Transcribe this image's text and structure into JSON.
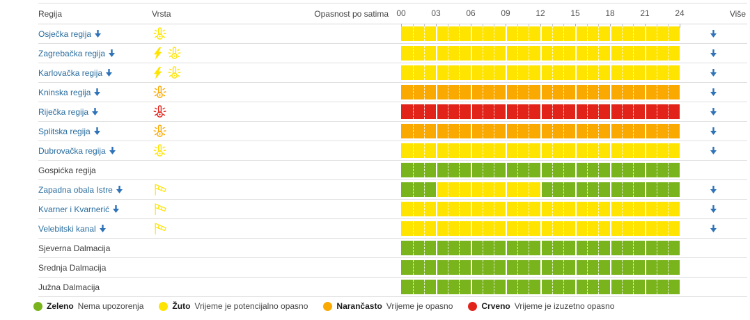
{
  "table": {
    "header": {
      "region": "Regija",
      "type": "Vrsta",
      "hours": "Opasnost po satima",
      "more": "Više",
      "hour_labels": [
        "00",
        "03",
        "06",
        "09",
        "12",
        "15",
        "18",
        "21",
        "24"
      ]
    },
    "rows": [
      {
        "name": "Osječka regija",
        "link": true,
        "more": true,
        "icons": [
          {
            "icon": "heat",
            "color": "yellow"
          }
        ],
        "segments": [
          {
            "from": 0,
            "to": 24,
            "level": "yellow"
          }
        ]
      },
      {
        "name": "Zagrebačka regija",
        "link": true,
        "more": true,
        "icons": [
          {
            "icon": "thunderstorm",
            "color": "yellow"
          },
          {
            "icon": "heat",
            "color": "yellow"
          }
        ],
        "segments": [
          {
            "from": 0,
            "to": 24,
            "level": "yellow"
          }
        ]
      },
      {
        "name": "Karlovačka regija",
        "link": true,
        "more": true,
        "icons": [
          {
            "icon": "thunderstorm",
            "color": "yellow"
          },
          {
            "icon": "heat",
            "color": "yellow"
          }
        ],
        "segments": [
          {
            "from": 0,
            "to": 24,
            "level": "yellow"
          }
        ]
      },
      {
        "name": "Kninska regija",
        "link": true,
        "more": true,
        "icons": [
          {
            "icon": "heat",
            "color": "orange"
          }
        ],
        "segments": [
          {
            "from": 0,
            "to": 24,
            "level": "orange"
          }
        ]
      },
      {
        "name": "Riječka regija",
        "link": true,
        "more": true,
        "icons": [
          {
            "icon": "heat",
            "color": "red"
          }
        ],
        "segments": [
          {
            "from": 0,
            "to": 24,
            "level": "red"
          }
        ]
      },
      {
        "name": "Splitska regija",
        "link": true,
        "more": true,
        "icons": [
          {
            "icon": "heat",
            "color": "orange"
          }
        ],
        "segments": [
          {
            "from": 0,
            "to": 24,
            "level": "orange"
          }
        ]
      },
      {
        "name": "Dubrovačka regija",
        "link": true,
        "more": true,
        "icons": [
          {
            "icon": "heat",
            "color": "yellow"
          }
        ],
        "segments": [
          {
            "from": 0,
            "to": 24,
            "level": "yellow"
          }
        ]
      },
      {
        "name": "Gospićka regija",
        "link": false,
        "more": false,
        "icons": [],
        "segments": [
          {
            "from": 0,
            "to": 24,
            "level": "green"
          }
        ]
      },
      {
        "name": "Zapadna obala Istre",
        "link": true,
        "more": true,
        "icons": [
          {
            "icon": "wind",
            "color": "yellow"
          }
        ],
        "segments": [
          {
            "from": 0,
            "to": 3,
            "level": "green"
          },
          {
            "from": 3,
            "to": 12,
            "level": "yellow"
          },
          {
            "from": 12,
            "to": 24,
            "level": "green"
          }
        ]
      },
      {
        "name": "Kvarner i Kvarnerić",
        "link": true,
        "more": true,
        "icons": [
          {
            "icon": "wind",
            "color": "yellow"
          }
        ],
        "segments": [
          {
            "from": 0,
            "to": 24,
            "level": "yellow"
          }
        ]
      },
      {
        "name": "Velebitski kanal",
        "link": true,
        "more": true,
        "icons": [
          {
            "icon": "wind",
            "color": "yellow"
          }
        ],
        "segments": [
          {
            "from": 0,
            "to": 24,
            "level": "yellow"
          }
        ]
      },
      {
        "name": "Sjeverna Dalmacija",
        "link": false,
        "more": false,
        "icons": [],
        "segments": [
          {
            "from": 0,
            "to": 24,
            "level": "green"
          }
        ]
      },
      {
        "name": "Srednja Dalmacija",
        "link": false,
        "more": false,
        "icons": [],
        "segments": [
          {
            "from": 0,
            "to": 24,
            "level": "green"
          }
        ]
      },
      {
        "name": "Južna Dalmacija",
        "link": false,
        "more": false,
        "icons": [],
        "segments": [
          {
            "from": 0,
            "to": 24,
            "level": "green"
          }
        ]
      }
    ]
  },
  "legend": {
    "items": [
      {
        "swatch": "green",
        "label": "Zeleno",
        "text": "Nema upozorenja"
      },
      {
        "swatch": "yellow",
        "label": "Žuto",
        "text": "Vrijeme je potencijalno opasno"
      },
      {
        "swatch": "orange",
        "label": "Narančasto",
        "text": "Vrijeme je opasno"
      },
      {
        "swatch": "red",
        "label": "Crveno",
        "text": "Vrijeme je izuzetno opasno"
      }
    ]
  },
  "colors": {
    "green": "#7ab41d",
    "yellow": "#ffe400",
    "orange": "#faa900",
    "red": "#e2231a",
    "link": "#2a6d9e",
    "arrow": "#2e72b8"
  }
}
